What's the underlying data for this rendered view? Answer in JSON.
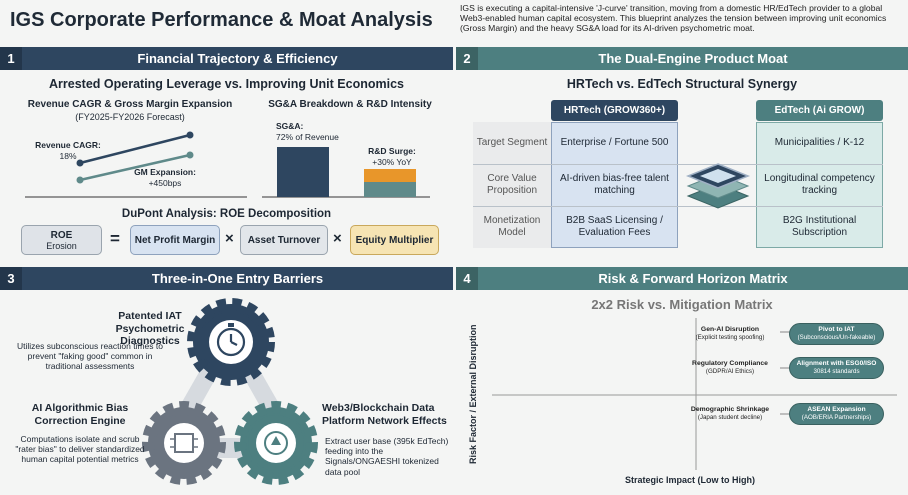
{
  "header": {
    "title": "IGS Corporate Performance & Moat Analysis",
    "intro": "IGS is executing a capital-intensive 'J-curve' transition, moving from a domestic HR/EdTech provider to a global Web3-enabled human capital ecosystem. This blueprint analyzes the tension between improving unit economics (Gross Margin) and the heavy SG&A load for its AI-driven psychometric moat."
  },
  "s1": {
    "num": "1",
    "title": "Financial Trajectory & Efficiency",
    "subtitle": "Arrested Operating Leverage vs. Improving Unit Economics",
    "chart1_title": "Revenue CAGR & Gross Margin Expansion",
    "chart1_sub": "(FY2025-FY2026 Forecast)",
    "rev_label": "Revenue CAGR:",
    "rev_value": "18%",
    "gm_label": "GM Expansion:",
    "gm_value": "+450bps",
    "chart2_title": "SG&A Breakdown & R&D Intensity",
    "sga_label": "SG&A:",
    "sga_value": "72% of Revenue",
    "rd_label": "R&D Surge:",
    "rd_value": "+30% YoY",
    "dupont_title": "DuPont Analysis: ROE Decomposition",
    "roe": "ROE",
    "roe_sub": "Erosion",
    "eq": "=",
    "times": "×",
    "npm": "Net Profit Margin",
    "at": "Asset Turnover",
    "em": "Equity Multiplier"
  },
  "s2": {
    "num": "2",
    "title": "The Dual-Engine Product Moat",
    "subtitle": "HRTech vs. EdTech Structural Synergy",
    "hr_head": "HRTech (GROW360+)",
    "ed_head": "EdTech (Ai GROW)",
    "rows": [
      {
        "label": "Target Segment",
        "hr": "Enterprise / Fortune 500",
        "ed": "Municipalities / K-12"
      },
      {
        "label": "Core Value Proposition",
        "hr": "AI-driven bias-free talent matching",
        "ed": "Longitudinal competency tracking"
      },
      {
        "label": "Monetization Model",
        "hr": "B2B SaaS Licensing / Evaluation Fees",
        "ed": "B2G Institutional Subscription"
      }
    ]
  },
  "s3": {
    "num": "3",
    "title": "Three-in-One Entry Barriers",
    "b1_title": "Patented IAT Psychometric Diagnostics",
    "b1_desc": "Utilizes subconscious reaction times to prevent \"faking good\" common in traditional assessments",
    "b2_title": "AI Algorithmic Bias Correction Engine",
    "b2_desc": "Computations isolate and scrub \"rater bias\" to deliver standardized human capital potential metrics",
    "b3_title": "Web3/Blockchain Data Platform Network Effects",
    "b3_desc": "Extract user base (395k EdTech) feeding into the Signals/ONGAESHI tokenized data pool"
  },
  "s4": {
    "num": "4",
    "title": "Risk & Forward Horizon Matrix",
    "subtitle": "2x2 Risk vs. Mitigation Matrix",
    "y_axis": "Risk Factor / External Disruption",
    "x_axis": "Strategic Impact (Low to High)",
    "risks": [
      {
        "title": "Gen-AI Disruption",
        "sub": "(Explicit testing spoofing)",
        "mit_title": "Pivot to IAT",
        "mit_sub": "(Subconscious/Un-fakeable)"
      },
      {
        "title": "Regulatory Compliance",
        "sub": "(GDPR/AI Ethics)",
        "mit_title": "Alignment with ESG0/ISO",
        "mit_sub": "30814 standards"
      },
      {
        "title": "Demographic Shrinkage",
        "sub": "(Japan student decline)",
        "mit_title": "ASEAN Expansion",
        "mit_sub": "(AOB/ERIA Partnerships)"
      }
    ]
  },
  "colors": {
    "navy": "#2e4660",
    "teal": "#4d7f80",
    "orange": "#e8962a",
    "light_blue": "#d8e3f1",
    "yellow": "#f6e4b3"
  }
}
